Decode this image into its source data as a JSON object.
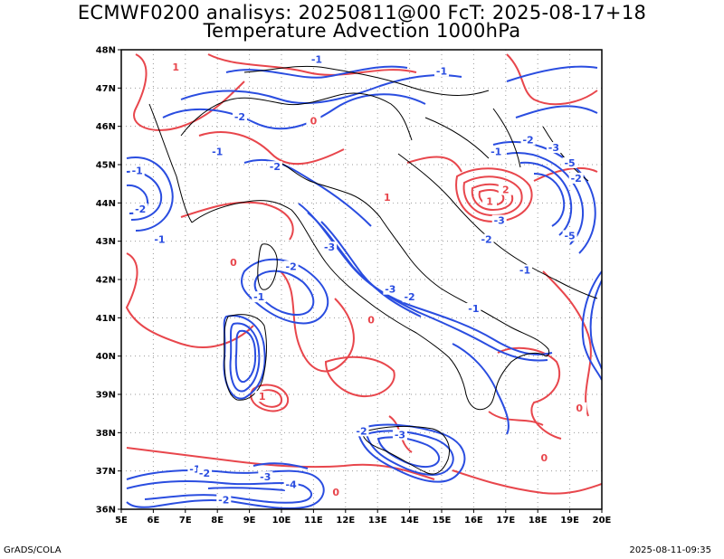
{
  "title_line1": "ECMWF0200 analisys: 20250811@00 FcT: 2025-08-17+18",
  "title_line2": "Temperature Advection 1000hPa",
  "footer_left": "GrADS/COLA",
  "footer_right": "2025-08-11-09:35",
  "map": {
    "lon_range": [
      5,
      20
    ],
    "lat_range": [
      36,
      48
    ],
    "grid": "dotted",
    "lon_ticks": [
      "5E",
      "6E",
      "7E",
      "8E",
      "9E",
      "10E",
      "11E",
      "12E",
      "13E",
      "14E",
      "15E",
      "16E",
      "17E",
      "18E",
      "19E",
      "20E"
    ],
    "lat_ticks": [
      "36N",
      "37N",
      "38N",
      "39N",
      "40N",
      "41N",
      "42N",
      "43N",
      "44N",
      "45N",
      "46N",
      "47N",
      "48N"
    ],
    "colors": {
      "positive": "#e8464c",
      "negative": "#2a4de0",
      "coast": "#000000"
    },
    "contour_labels": [
      {
        "text": "-1",
        "lon": 5.5,
        "lat": 44.8,
        "sign": "neg"
      },
      {
        "text": "-2",
        "lon": 5.6,
        "lat": 43.8,
        "sign": "neg"
      },
      {
        "text": "-1",
        "lon": 6.2,
        "lat": 43.0,
        "sign": "neg"
      },
      {
        "text": "-2",
        "lon": 8.7,
        "lat": 46.2,
        "sign": "neg"
      },
      {
        "text": "-1",
        "lon": 8.0,
        "lat": 45.3,
        "sign": "neg"
      },
      {
        "text": "-2",
        "lon": 9.8,
        "lat": 44.9,
        "sign": "neg"
      },
      {
        "text": "-1",
        "lon": 11.1,
        "lat": 47.7,
        "sign": "neg"
      },
      {
        "text": "-1",
        "lon": 15.0,
        "lat": 47.4,
        "sign": "neg"
      },
      {
        "text": "-1",
        "lon": 16.7,
        "lat": 45.3,
        "sign": "neg"
      },
      {
        "text": "-2",
        "lon": 17.7,
        "lat": 45.6,
        "sign": "neg"
      },
      {
        "text": "-3",
        "lon": 18.5,
        "lat": 45.4,
        "sign": "neg"
      },
      {
        "text": "-5",
        "lon": 19.0,
        "lat": 45.0,
        "sign": "neg"
      },
      {
        "text": "-2",
        "lon": 19.2,
        "lat": 44.6,
        "sign": "neg"
      },
      {
        "text": "-3",
        "lon": 16.8,
        "lat": 43.5,
        "sign": "neg"
      },
      {
        "text": "-5",
        "lon": 19.0,
        "lat": 43.1,
        "sign": "neg"
      },
      {
        "text": "-2",
        "lon": 16.4,
        "lat": 43.0,
        "sign": "neg"
      },
      {
        "text": "-1",
        "lon": 17.6,
        "lat": 42.2,
        "sign": "neg"
      },
      {
        "text": "-3",
        "lon": 11.5,
        "lat": 42.8,
        "sign": "neg"
      },
      {
        "text": "-2",
        "lon": 10.3,
        "lat": 42.3,
        "sign": "neg"
      },
      {
        "text": "-1",
        "lon": 9.3,
        "lat": 41.5,
        "sign": "neg"
      },
      {
        "text": "-3",
        "lon": 13.4,
        "lat": 41.7,
        "sign": "neg"
      },
      {
        "text": "-2",
        "lon": 14.0,
        "lat": 41.5,
        "sign": "neg"
      },
      {
        "text": "-1",
        "lon": 16.0,
        "lat": 41.2,
        "sign": "neg"
      },
      {
        "text": "-2",
        "lon": 12.5,
        "lat": 38.0,
        "sign": "neg"
      },
      {
        "text": "-3",
        "lon": 13.7,
        "lat": 37.9,
        "sign": "neg"
      },
      {
        "text": "-1",
        "lon": 7.3,
        "lat": 37.0,
        "sign": "neg"
      },
      {
        "text": "-2",
        "lon": 7.6,
        "lat": 36.9,
        "sign": "neg"
      },
      {
        "text": "-3",
        "lon": 9.5,
        "lat": 36.8,
        "sign": "neg"
      },
      {
        "text": "-2",
        "lon": 8.2,
        "lat": 36.2,
        "sign": "neg"
      },
      {
        "text": "-4",
        "lon": 10.3,
        "lat": 36.6,
        "sign": "neg"
      },
      {
        "text": "1",
        "lon": 6.7,
        "lat": 47.5,
        "sign": "pos"
      },
      {
        "text": "0",
        "lon": 11.0,
        "lat": 46.1,
        "sign": "pos"
      },
      {
        "text": "1",
        "lon": 13.3,
        "lat": 44.1,
        "sign": "pos"
      },
      {
        "text": "0",
        "lon": 8.5,
        "lat": 42.4,
        "sign": "pos"
      },
      {
        "text": "1",
        "lon": 16.5,
        "lat": 44.0,
        "sign": "pos"
      },
      {
        "text": "2",
        "lon": 17.0,
        "lat": 44.3,
        "sign": "pos"
      },
      {
        "text": "0",
        "lon": 12.8,
        "lat": 40.9,
        "sign": "pos"
      },
      {
        "text": "1",
        "lon": 9.4,
        "lat": 38.9,
        "sign": "pos"
      },
      {
        "text": "0",
        "lon": 19.3,
        "lat": 38.6,
        "sign": "pos"
      },
      {
        "text": "0",
        "lon": 11.7,
        "lat": 36.4,
        "sign": "pos"
      },
      {
        "text": "0",
        "lon": 18.2,
        "lat": 37.3,
        "sign": "pos"
      }
    ]
  }
}
